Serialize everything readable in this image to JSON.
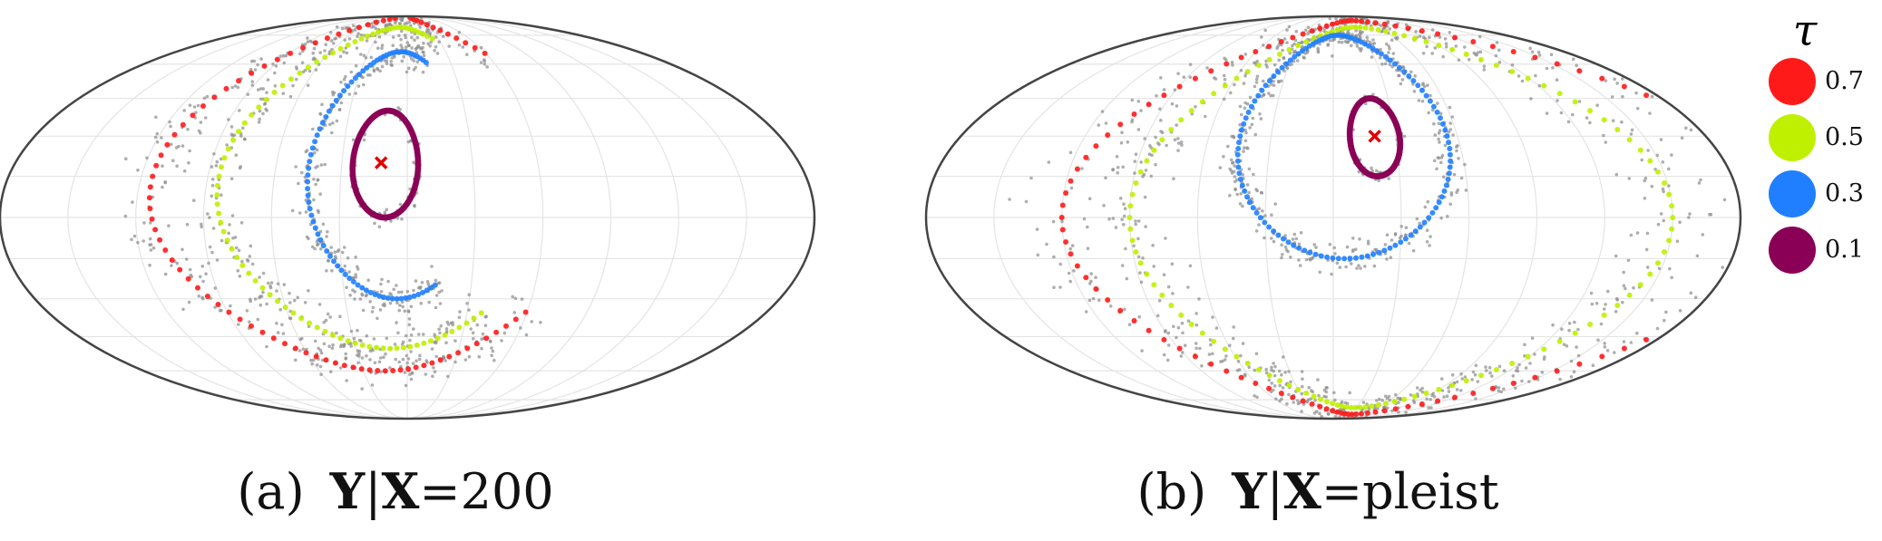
{
  "captions": [
    {
      "label": "(a)",
      "y": "Y",
      "sep": "|",
      "x": "X",
      "eq": "=",
      "value": "200"
    },
    {
      "label": "(b)",
      "y": "Y",
      "sep": "|",
      "x": "X",
      "eq": "=",
      "value": "pleist"
    }
  ],
  "legend": {
    "title": "τ",
    "items": [
      {
        "label": "0.7",
        "color": "#ff1a1a"
      },
      {
        "label": "0.5",
        "color": "#bff000"
      },
      {
        "label": "0.3",
        "color": "#1f7fff"
      },
      {
        "label": "0.1",
        "color": "#8b0057"
      }
    ]
  },
  "colors": {
    "background_points": "#8c8c8c",
    "mode_marker": "#e00000",
    "outline": "#444444",
    "graticule": "#e4e4e4"
  },
  "chart_data": [
    {
      "type": "scatter",
      "projection": "mollweide",
      "title": "",
      "mode": {
        "lon": -12,
        "lat": 20
      },
      "contours": [
        {
          "tau": "0.1",
          "center_lon": -10,
          "center_lat": 20,
          "rx": 15,
          "ry": 20
        },
        {
          "tau": "0.3",
          "center_lon": -5,
          "center_lat": 18,
          "rx": 40,
          "ry": 48,
          "open_from": 300,
          "open_to": 60
        },
        {
          "tau": "0.5",
          "center_lon": -10,
          "center_lat": 15,
          "rx": 75,
          "ry": 65,
          "open_from": 310,
          "open_to": 60
        },
        {
          "tau": "0.7",
          "center_lon": -15,
          "center_lat": 15,
          "rx": 100,
          "ry": 75,
          "open_from": 320,
          "open_to": 40
        }
      ]
    },
    {
      "type": "scatter",
      "projection": "mollweide",
      "title": "",
      "mode": {
        "lon": 20,
        "lat": 30
      },
      "contours": [
        {
          "tau": "0.1",
          "center_lon": 20,
          "center_lat": 30,
          "rx": 12,
          "ry": 15
        },
        {
          "tau": "0.3",
          "center_lon": 5,
          "center_lat": 30,
          "rx": 50,
          "ry": 45
        },
        {
          "tau": "0.5",
          "center_lon": 30,
          "center_lat": 0,
          "rx": 120,
          "ry": 80
        },
        {
          "tau": "0.7",
          "center_lon": 40,
          "center_lat": 0,
          "rx": 160,
          "ry": 85
        }
      ]
    }
  ]
}
